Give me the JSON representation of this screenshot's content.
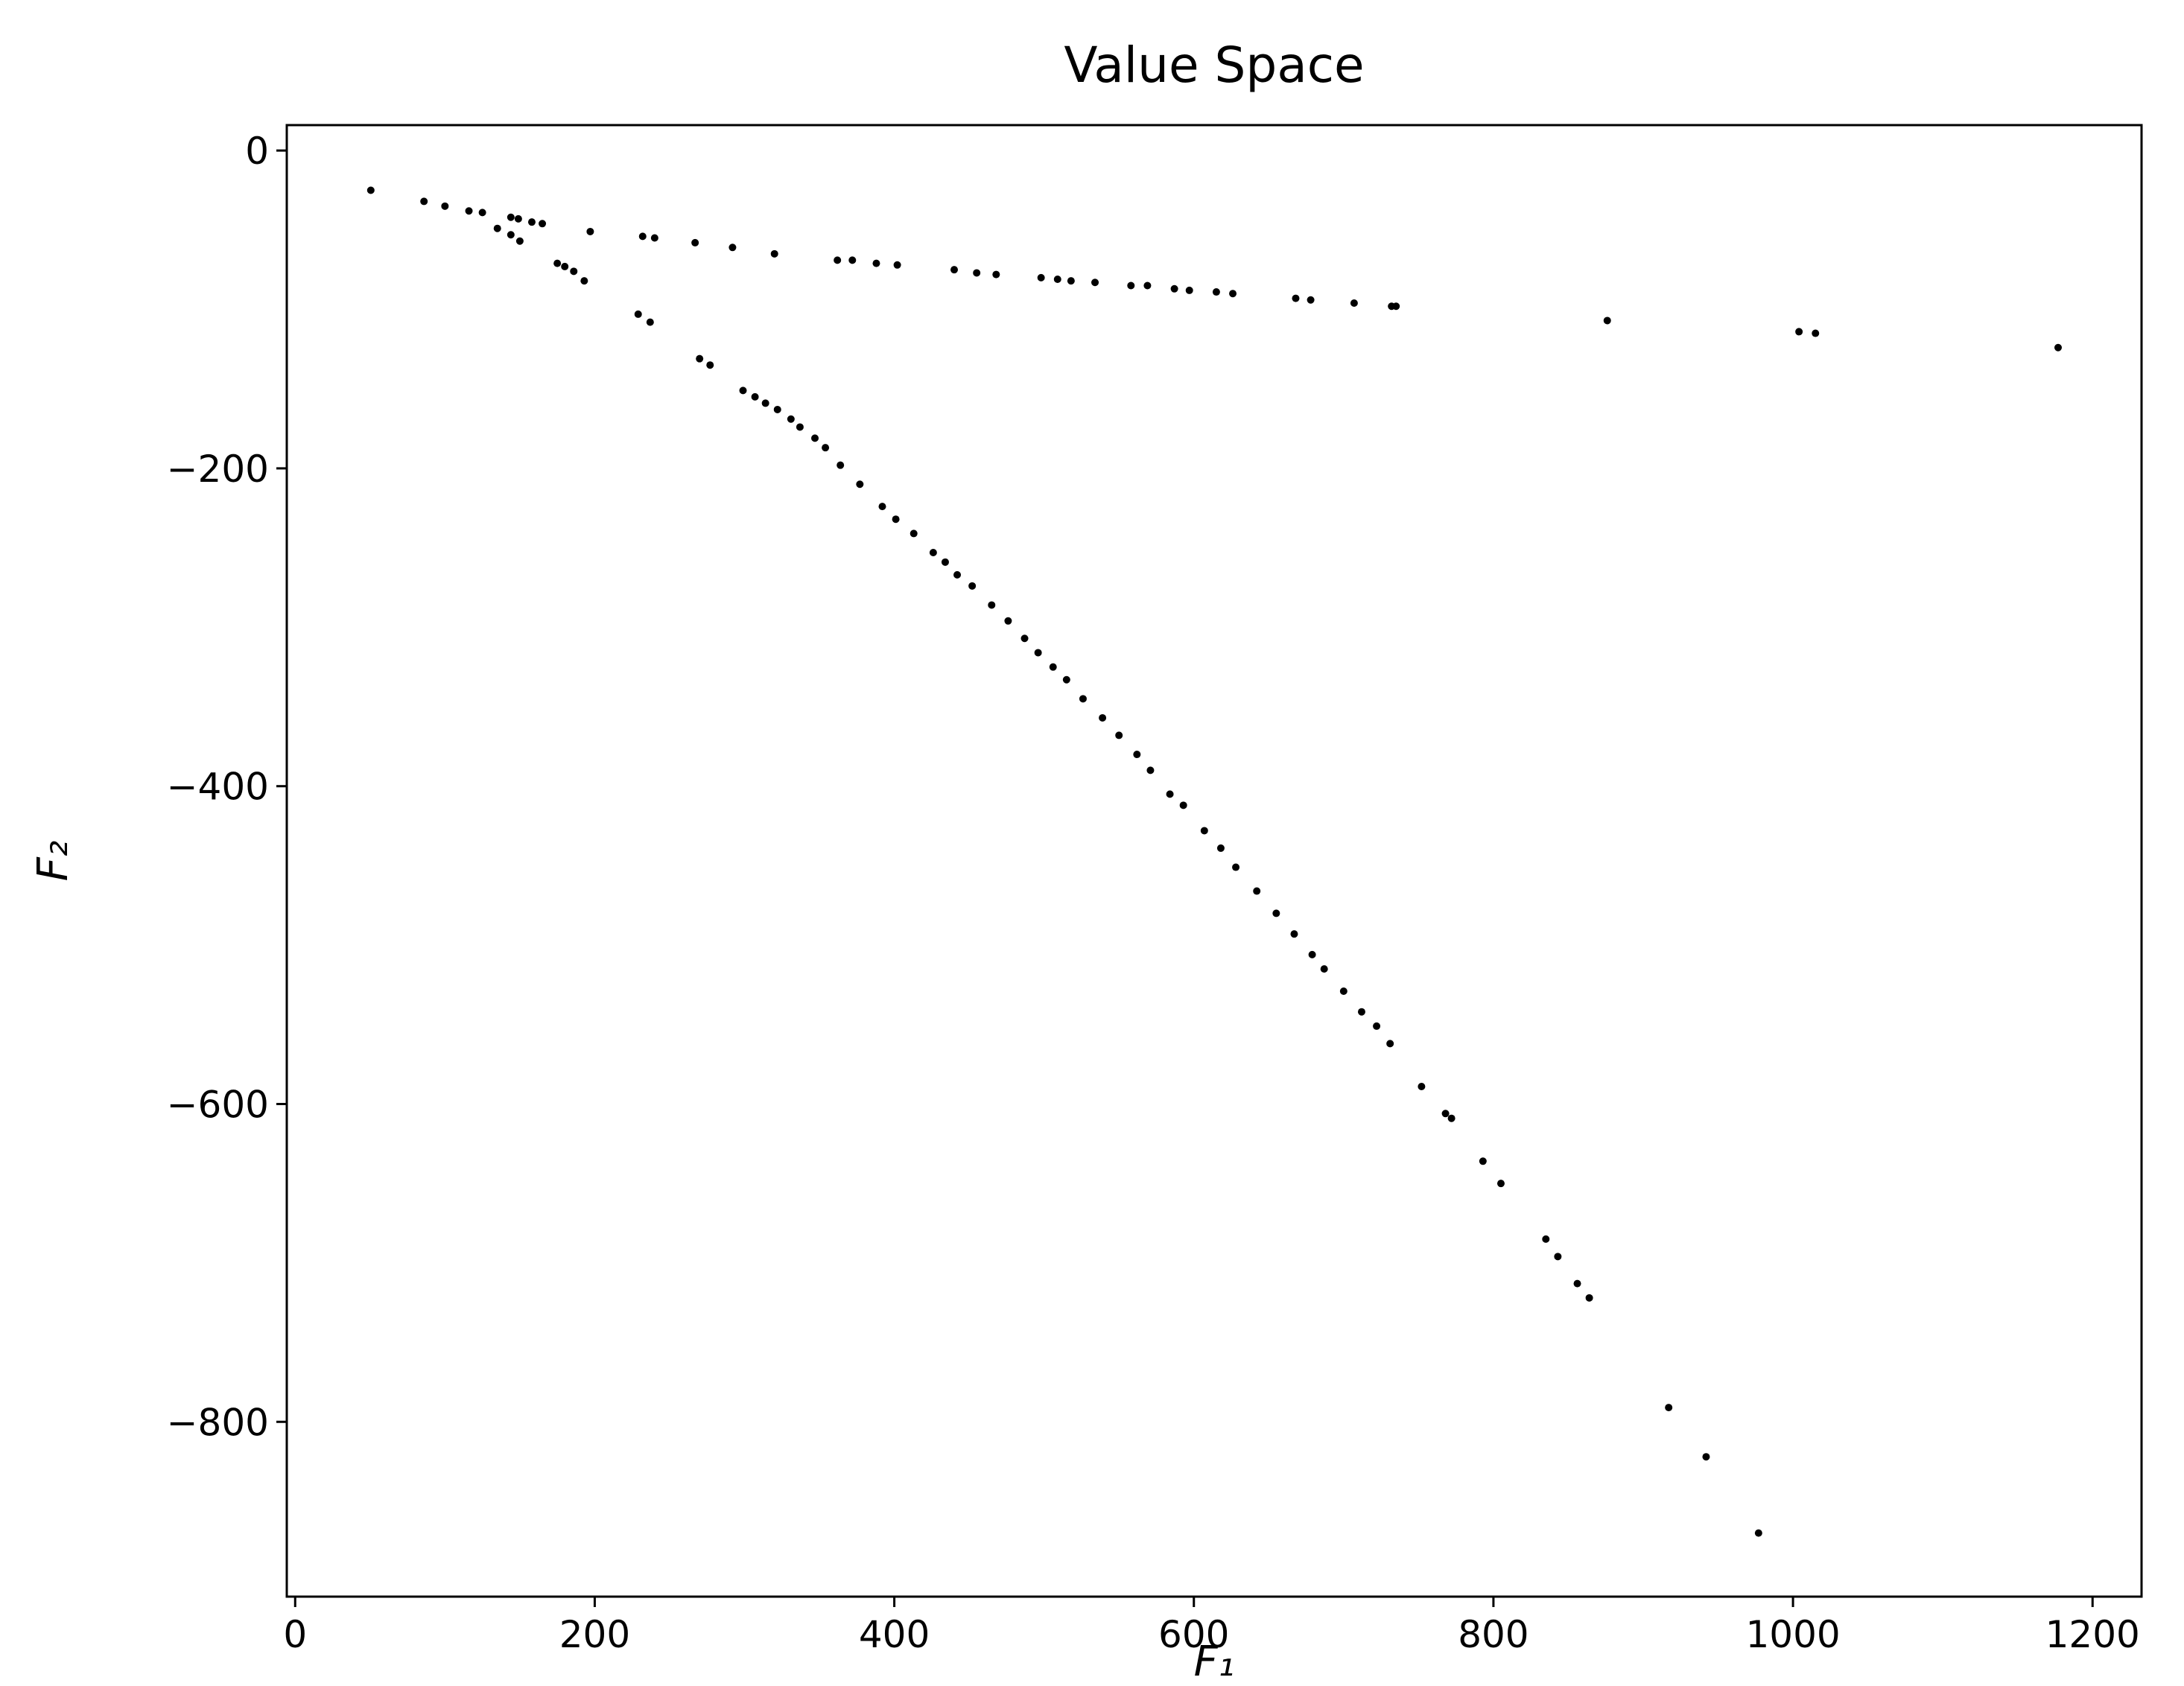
{
  "chart_data": {
    "type": "scatter",
    "title": "Value Space",
    "x_label": "F₁",
    "y_label": "F₂",
    "color": "#000000",
    "xlim": [
      -5.6,
      1232.7
    ],
    "ylim": [
      -910,
      16
    ],
    "xticks": [
      0,
      200,
      400,
      600,
      800,
      1000,
      1200
    ],
    "yticks": [
      {
        "value": 0,
        "label": "0"
      },
      {
        "value": -200,
        "label": "−200"
      },
      {
        "value": -400,
        "label": "−400"
      },
      {
        "value": -600,
        "label": "−600"
      },
      {
        "value": -800,
        "label": "−800"
      }
    ],
    "x": [
      50.5,
      86,
      100,
      116,
      125,
      144,
      149,
      158,
      165,
      197,
      232,
      240,
      267,
      292,
      320,
      362,
      372,
      388,
      402,
      440,
      455,
      468,
      498,
      509,
      518,
      534,
      558,
      569,
      587,
      597,
      615,
      626,
      668,
      678,
      707,
      732,
      735,
      876,
      1004,
      1015,
      1177,
      135,
      144,
      150,
      175,
      180,
      186,
      193,
      229,
      237,
      270,
      277,
      299,
      307,
      314,
      322,
      331,
      337,
      347,
      354,
      364,
      377,
      392,
      401,
      413,
      426,
      434,
      442,
      452,
      465,
      476,
      487,
      496,
      506,
      515,
      526,
      539,
      550,
      562,
      571,
      584,
      593,
      607,
      618,
      628,
      642,
      655,
      667,
      679,
      687,
      700,
      712,
      722,
      731,
      752,
      768,
      772,
      793,
      805,
      835,
      843,
      856,
      864,
      917,
      942,
      977
    ],
    "y": [
      -25,
      -32,
      -35,
      -38,
      -39,
      -42,
      -43,
      -45,
      -46,
      -51,
      -54,
      -55,
      -58,
      -61,
      -65,
      -69,
      -69,
      -71,
      -72,
      -75,
      -77,
      -78,
      -80,
      -81,
      -82,
      -83,
      -85,
      -85,
      -87,
      -88,
      -89,
      -90,
      -93,
      -94,
      -96,
      -98,
      -98,
      -107,
      -114,
      -115,
      -124,
      -49,
      -53,
      -57,
      -71,
      -73,
      -76,
      -82,
      -103,
      -108,
      -131,
      -135,
      -151,
      -155,
      -159,
      -163,
      -169,
      -174,
      -181,
      -187,
      -198,
      -210,
      -224,
      -232,
      -241,
      -253,
      -259,
      -267,
      -274,
      -286,
      -296,
      -307,
      -316,
      -325,
      -333,
      -345,
      -357,
      -368,
      -380,
      -390,
      -405,
      -412,
      -428,
      -439,
      -451,
      -466,
      -480,
      -493,
      -506,
      -515,
      -529,
      -542,
      -551,
      -562,
      -589,
      -606,
      -609,
      -636,
      -650,
      -685,
      -696,
      -713,
      -722,
      -791,
      -822,
      -870
    ]
  }
}
